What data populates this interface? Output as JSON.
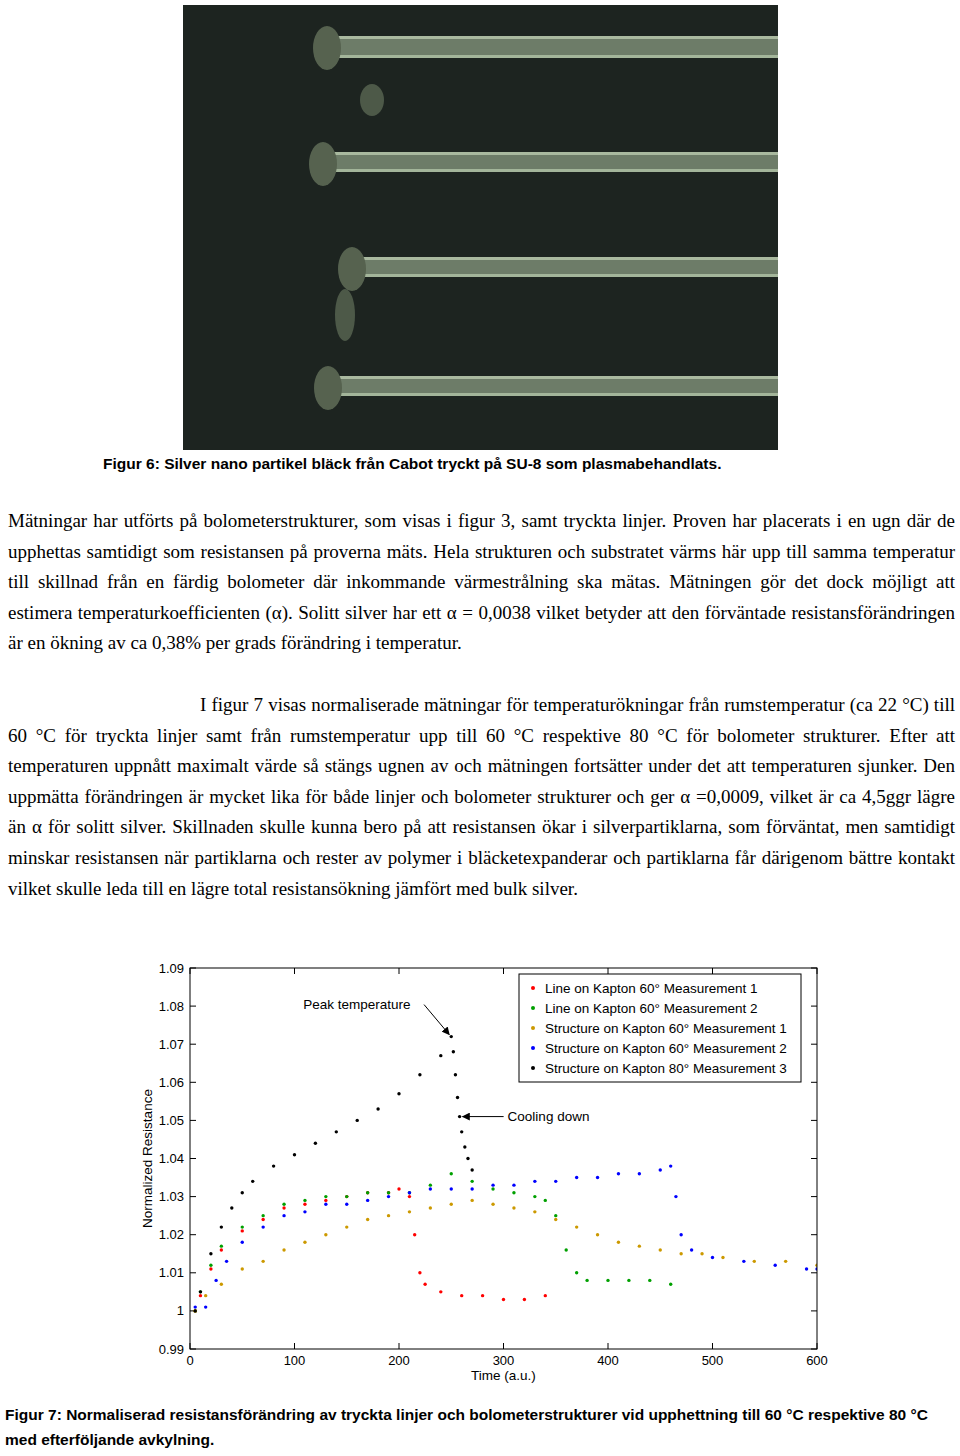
{
  "figure6": {
    "caption": "Figur 6: Silver nano partikel bläck från Cabot tryckt på SU-8 som plasmabehandlats."
  },
  "body": {
    "paragraphs": [
      "Mätningar har utförts på bolometerstrukturer, som visas i figur 3, samt tryckta linjer. Proven har placerats i en ugn där de upphettas samtidigt som resistansen på proverna mäts. Hela strukturen och substratet värms här upp till samma temperatur till skillnad från en färdig bolometer där inkommande värmestrålning ska mätas. Mätningen gör det dock möjligt att estimera temperaturkoefficienten (α). Solitt silver har ett α = 0,0038 vilket betyder att den förväntade resistansförändringen är en ökning av ca 0,38% per grads förändring i temperatur.",
      "I figur 7 visas normaliserade mätningar för temperaturökningar från rumstemperatur (ca 22 °C) till 60 °C för tryckta linjer samt från rumstemperatur upp till 60 °C respektive 80 °C för bolometer strukturer. Efter att temperaturen uppnått maximalt värde så stängs ugnen av och mätningen fortsätter under det att temperaturen sjunker. Den uppmätta förändringen är mycket lika för både linjer och bolometer strukturer och ger α =0,0009, vilket är ca 4,5ggr lägre än α för solitt silver. Skillnaden skulle kunna bero på att resistansen ökar i silverpartiklarna, som förväntat, men samtidigt minskar resistansen när partiklarna och rester av polymer i bläcketexpanderar och partiklarna får därigenom bättre kontakt vilket skulle leda till en lägre total resistansökning jämfört med bulk silver."
    ]
  },
  "chart_data": {
    "type": "scatter",
    "marker": "point",
    "legend": "upper right",
    "grid": false,
    "x_label": "Time (a.u.)",
    "y_label": "Normalized Resistance",
    "xlim": [
      0,
      600
    ],
    "xticks": [
      0,
      100,
      200,
      300,
      400,
      500,
      600
    ],
    "ylim": [
      0.99,
      1.09
    ],
    "yticks": [
      0.99,
      1,
      1.01,
      1.02,
      1.03,
      1.04,
      1.05,
      1.06,
      1.07,
      1.08,
      1.09
    ],
    "annotations": [
      {
        "text": "Peak temperature",
        "x": 250,
        "y": 1.072
      },
      {
        "text": "Cooling down",
        "x": 258,
        "y": 1.051
      }
    ],
    "series": [
      {
        "name": "Line on Kapton 60° Measurement 1",
        "color": "#ff0000",
        "x": [
          5,
          10,
          20,
          30,
          50,
          70,
          90,
          110,
          130,
          150,
          170,
          190,
          200,
          210,
          215,
          220,
          225,
          240,
          260,
          280,
          300,
          320,
          340
        ],
        "values": [
          1.0,
          1.004,
          1.011,
          1.016,
          1.021,
          1.024,
          1.027,
          1.028,
          1.029,
          1.03,
          1.031,
          1.031,
          1.032,
          1.03,
          1.02,
          1.01,
          1.007,
          1.005,
          1.004,
          1.004,
          1.003,
          1.003,
          1.004
        ]
      },
      {
        "name": "Line on Kapton 60° Measurement 2",
        "color": "#00a000",
        "x": [
          5,
          10,
          20,
          30,
          50,
          70,
          90,
          110,
          130,
          150,
          170,
          190,
          210,
          230,
          250,
          270,
          290,
          310,
          330,
          340,
          350,
          360,
          370,
          380,
          400,
          420,
          440,
          460
        ],
        "values": [
          1.0,
          1.005,
          1.012,
          1.017,
          1.022,
          1.025,
          1.028,
          1.029,
          1.03,
          1.03,
          1.031,
          1.031,
          1.031,
          1.033,
          1.036,
          1.034,
          1.032,
          1.031,
          1.03,
          1.029,
          1.025,
          1.016,
          1.01,
          1.008,
          1.008,
          1.008,
          1.008,
          1.007
        ]
      },
      {
        "name": "Structure on Kapton 60° Measurement 1",
        "color": "#cc9900",
        "x": [
          5,
          15,
          30,
          50,
          70,
          90,
          110,
          130,
          150,
          170,
          190,
          210,
          230,
          250,
          270,
          290,
          310,
          330,
          350,
          370,
          390,
          410,
          430,
          450,
          470,
          490,
          510,
          540,
          570,
          600
        ],
        "values": [
          1.0,
          1.004,
          1.007,
          1.011,
          1.013,
          1.016,
          1.018,
          1.02,
          1.022,
          1.024,
          1.025,
          1.026,
          1.027,
          1.028,
          1.029,
          1.028,
          1.027,
          1.026,
          1.024,
          1.022,
          1.02,
          1.018,
          1.017,
          1.016,
          1.015,
          1.015,
          1.014,
          1.013,
          1.013,
          1.012
        ]
      },
      {
        "name": "Structure on Kapton 60° Measurement 2",
        "color": "#0000ff",
        "x": [
          5,
          15,
          25,
          35,
          50,
          70,
          90,
          110,
          130,
          150,
          170,
          190,
          210,
          230,
          250,
          270,
          290,
          310,
          330,
          350,
          370,
          390,
          410,
          430,
          450,
          460,
          465,
          470,
          480,
          500,
          530,
          560,
          590,
          600
        ],
        "values": [
          1.001,
          1.001,
          1.008,
          1.013,
          1.018,
          1.022,
          1.025,
          1.026,
          1.028,
          1.028,
          1.029,
          1.03,
          1.031,
          1.032,
          1.032,
          1.032,
          1.033,
          1.033,
          1.034,
          1.034,
          1.035,
          1.035,
          1.036,
          1.036,
          1.037,
          1.038,
          1.03,
          1.02,
          1.016,
          1.014,
          1.013,
          1.012,
          1.011,
          1.011
        ]
      },
      {
        "name": "Structure on Kapton 80° Measurement 3",
        "color": "#000000",
        "x": [
          5,
          10,
          20,
          30,
          40,
          50,
          60,
          80,
          100,
          120,
          140,
          160,
          180,
          200,
          220,
          240,
          250,
          252,
          254,
          256,
          258,
          260,
          263,
          266,
          270
        ],
        "values": [
          1.0,
          1.005,
          1.015,
          1.022,
          1.027,
          1.031,
          1.034,
          1.038,
          1.041,
          1.044,
          1.047,
          1.05,
          1.053,
          1.057,
          1.062,
          1.067,
          1.072,
          1.068,
          1.062,
          1.056,
          1.051,
          1.047,
          1.043,
          1.04,
          1.037
        ]
      }
    ]
  },
  "figure7": {
    "caption": "Figur 7: Normaliserad resistansförändring av tryckta linjer och bolometerstrukturer vid upphettning till 60 °C respektive 80 °C med efterföljande avkylning."
  }
}
